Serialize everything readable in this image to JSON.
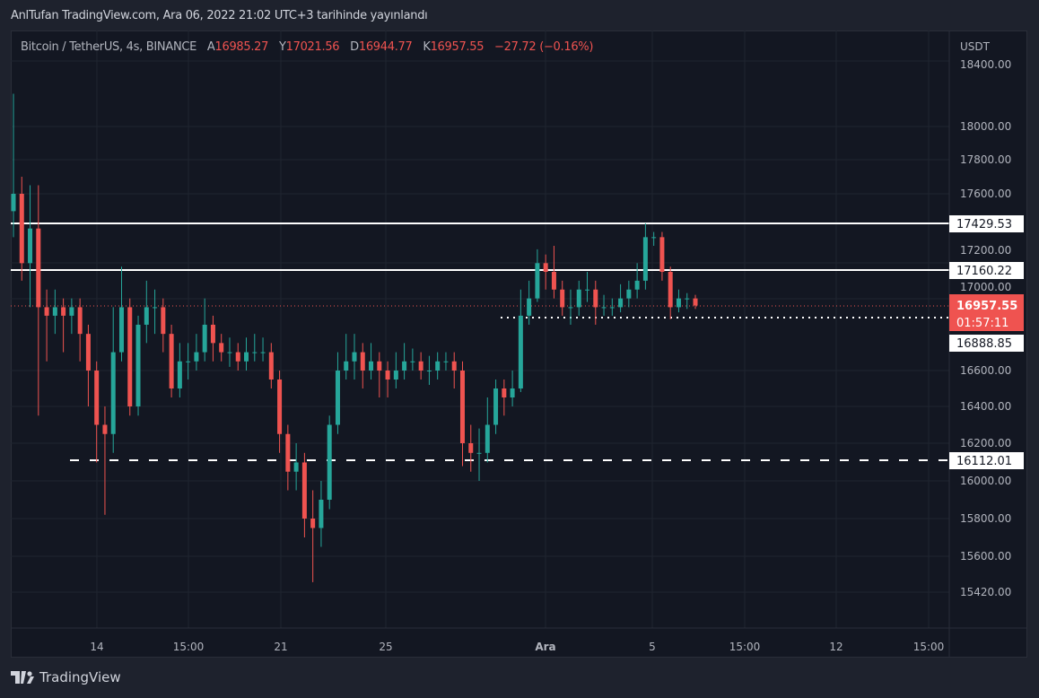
{
  "publish_line": "AnlTufan TradingView.com, Ara 06, 2022 21:02 UTC+3 tarihinde yayınlandı",
  "legend": {
    "symbol": "Bitcoin / TetherUS, 4s, BINANCE",
    "open_label": "A",
    "open": "16985.27",
    "high_label": "Y",
    "high": "17021.56",
    "low_label": "D",
    "low": "16944.77",
    "close_label": "K",
    "close": "16957.55",
    "change": "−27.72 (−0.16%)"
  },
  "price_axis": {
    "currency": "USDT",
    "ticks": [
      "18400.00",
      "18000.00",
      "17800.00",
      "17600.00",
      "17200.00",
      "17000.00",
      "16600.00",
      "16400.00",
      "16200.00",
      "16000.00",
      "15800.00",
      "15600.00",
      "15420.00"
    ]
  },
  "price_labels": {
    "resistance_high": "17429.53",
    "resistance_mid": "17160.22",
    "last_price": "16957.55",
    "countdown": "01:57:11",
    "support_dotted": "16888.85",
    "support_dashed": "16112.01"
  },
  "time_axis": {
    "ticks": [
      "14",
      "15:00",
      "21",
      "25",
      "Ara",
      "5",
      "15:00",
      "12",
      "15:00"
    ]
  },
  "footer": {
    "brand": "TradingView"
  },
  "colors": {
    "up": "#26a69a",
    "down": "#ef5350",
    "background": "#131722",
    "line": "#ffffff"
  },
  "chart_data": {
    "type": "candlestick",
    "title": "Bitcoin / TetherUS, 4s, BINANCE",
    "ylabel": "USDT",
    "ylim": [
      15420,
      18400
    ],
    "horizontal_lines": [
      {
        "price": 17429.53,
        "style": "solid"
      },
      {
        "price": 17160.22,
        "style": "solid"
      },
      {
        "price": 16888.85,
        "style": "dotted"
      },
      {
        "price": 16112.01,
        "style": "dashed"
      },
      {
        "price": 16957.55,
        "style": "last-price"
      }
    ],
    "candles": [
      [
        17500,
        18200,
        17350,
        17600
      ],
      [
        17600,
        17700,
        17100,
        17200
      ],
      [
        17200,
        17650,
        16950,
        17400
      ],
      [
        17400,
        17650,
        16350,
        16950
      ],
      [
        16950,
        17050,
        16650,
        16900
      ],
      [
        16900,
        17050,
        16800,
        16950
      ],
      [
        16950,
        17000,
        16700,
        16900
      ],
      [
        16900,
        17000,
        16800,
        16950
      ],
      [
        16950,
        17000,
        16650,
        16800
      ],
      [
        16800,
        16850,
        16400,
        16600
      ],
      [
        16600,
        16650,
        16100,
        16300
      ],
      [
        16300,
        16400,
        15820,
        16250
      ],
      [
        16250,
        16950,
        16150,
        16700
      ],
      [
        16700,
        17180,
        16650,
        16950
      ],
      [
        16950,
        17000,
        16350,
        16400
      ],
      [
        16400,
        16900,
        16350,
        16850
      ],
      [
        16850,
        17100,
        16750,
        16950
      ],
      [
        16950,
        17050,
        16800,
        16950
      ],
      [
        16950,
        17000,
        16700,
        16800
      ],
      [
        16800,
        16850,
        16450,
        16500
      ],
      [
        16500,
        16750,
        16450,
        16650
      ],
      [
        16650,
        16750,
        16550,
        16650
      ],
      [
        16650,
        16800,
        16600,
        16700
      ],
      [
        16700,
        17000,
        16650,
        16850
      ],
      [
        16850,
        16900,
        16650,
        16750
      ],
      [
        16750,
        16800,
        16650,
        16700
      ],
      [
        16700,
        16780,
        16620,
        16700
      ],
      [
        16700,
        16750,
        16600,
        16650
      ],
      [
        16650,
        16780,
        16600,
        16700
      ],
      [
        16700,
        16800,
        16650,
        16700
      ],
      [
        16700,
        16780,
        16650,
        16700
      ],
      [
        16700,
        16750,
        16500,
        16550
      ],
      [
        16550,
        16600,
        16150,
        16250
      ],
      [
        16250,
        16300,
        15950,
        16050
      ],
      [
        16050,
        16200,
        15950,
        16100
      ],
      [
        16100,
        16150,
        15700,
        15800
      ],
      [
        15800,
        15950,
        15470,
        15750
      ],
      [
        15750,
        16000,
        15650,
        15900
      ],
      [
        15900,
        16350,
        15850,
        16300
      ],
      [
        16300,
        16700,
        16250,
        16600
      ],
      [
        16600,
        16800,
        16550,
        16650
      ],
      [
        16650,
        16800,
        16550,
        16700
      ],
      [
        16700,
        16750,
        16500,
        16600
      ],
      [
        16600,
        16750,
        16550,
        16650
      ],
      [
        16650,
        16700,
        16450,
        16600
      ],
      [
        16600,
        16650,
        16450,
        16550
      ],
      [
        16550,
        16700,
        16500,
        16600
      ],
      [
        16600,
        16750,
        16550,
        16650
      ],
      [
        16650,
        16720,
        16600,
        16650
      ],
      [
        16650,
        16700,
        16550,
        16600
      ],
      [
        16600,
        16680,
        16520,
        16600
      ],
      [
        16600,
        16700,
        16550,
        16650
      ],
      [
        16650,
        16700,
        16600,
        16650
      ],
      [
        16650,
        16700,
        16500,
        16600
      ],
      [
        16600,
        16650,
        16080,
        16200
      ],
      [
        16200,
        16300,
        16050,
        16150
      ],
      [
        16150,
        16280,
        16000,
        16150
      ],
      [
        16150,
        16450,
        16100,
        16300
      ],
      [
        16300,
        16550,
        16250,
        16500
      ],
      [
        16500,
        16550,
        16350,
        16450
      ],
      [
        16450,
        16600,
        16400,
        16500
      ],
      [
        16500,
        17050,
        16480,
        16900
      ],
      [
        16900,
        17100,
        16850,
        17000
      ],
      [
        17000,
        17280,
        16980,
        17200
      ],
      [
        17200,
        17250,
        17050,
        17150
      ],
      [
        17150,
        17300,
        17000,
        17050
      ],
      [
        17050,
        17100,
        16900,
        16950
      ],
      [
        16950,
        17050,
        16850,
        16950
      ],
      [
        16950,
        17100,
        16900,
        17050
      ],
      [
        17050,
        17150,
        16980,
        17050
      ],
      [
        17050,
        17100,
        16850,
        16950
      ],
      [
        16950,
        17020,
        16900,
        16950
      ],
      [
        16950,
        17000,
        16900,
        16950
      ],
      [
        16950,
        17080,
        16920,
        17000
      ],
      [
        17000,
        17100,
        16950,
        17050
      ],
      [
        17050,
        17200,
        17000,
        17100
      ],
      [
        17100,
        17430,
        17050,
        17350
      ],
      [
        17350,
        17380,
        17300,
        17350
      ],
      [
        17350,
        17380,
        17100,
        17150
      ],
      [
        17150,
        17180,
        16880,
        16950
      ],
      [
        16950,
        17050,
        16920,
        17000
      ],
      [
        17000,
        17030,
        16940,
        17000
      ],
      [
        17000,
        17020,
        16940,
        16960
      ]
    ]
  }
}
